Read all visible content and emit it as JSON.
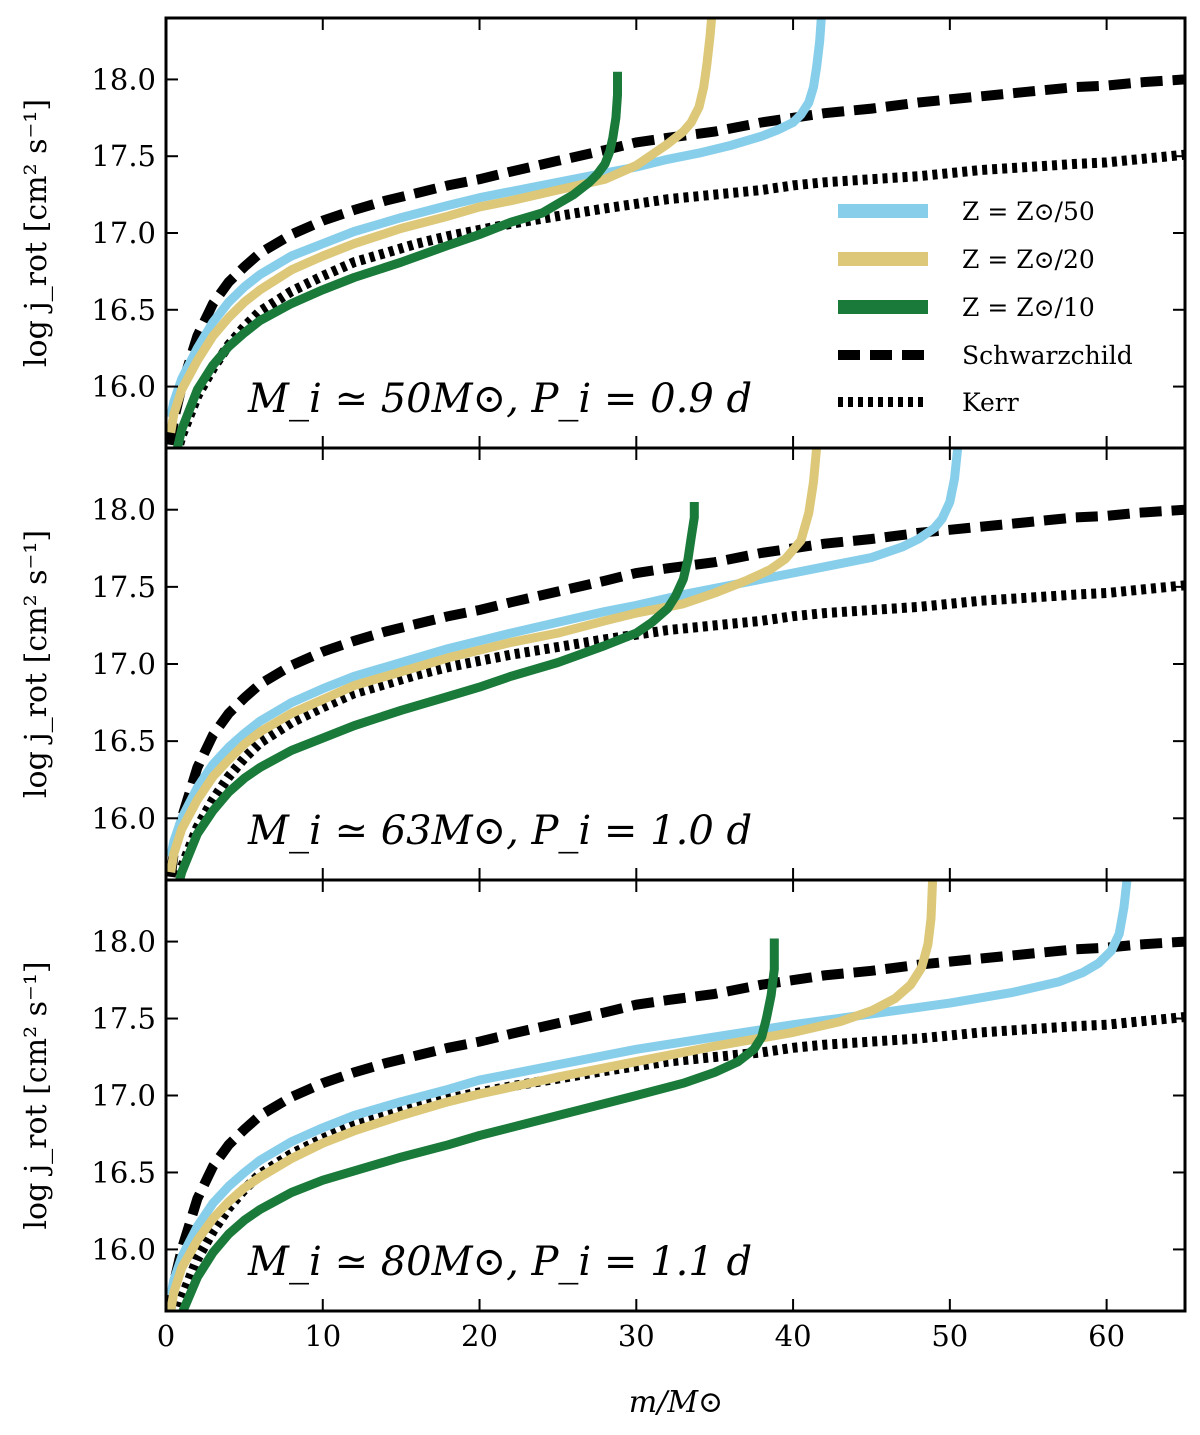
{
  "chart_data": {
    "type": "line",
    "xlabel": "m/M⊙",
    "ylabel": "log j_rot [cm² s⁻¹]",
    "xlim": [
      0,
      65
    ],
    "ylim": [
      15.6,
      18.4
    ],
    "xticks": [
      "0",
      "10",
      "20",
      "30",
      "40",
      "50",
      "60"
    ],
    "yticks": [
      "16.0",
      "16.5",
      "17.0",
      "17.5",
      "18.0"
    ],
    "colors": {
      "z50": "#87ceeb",
      "z20": "#dcc878",
      "z10": "#1a7a3a",
      "schwarzschild": "#000000",
      "kerr": "#000000"
    },
    "legend": {
      "position": "right",
      "entries": [
        {
          "key": "z50",
          "label": "Z = Z⊙/50",
          "style": "solid"
        },
        {
          "key": "z20",
          "label": "Z = Z⊙/20",
          "style": "solid"
        },
        {
          "key": "z10",
          "label": "Z = Z⊙/10",
          "style": "solid"
        },
        {
          "key": "schwarzschild",
          "label": "Schwarzchild",
          "style": "dashed"
        },
        {
          "key": "kerr",
          "label": "Kerr",
          "style": "dotted"
        }
      ]
    },
    "reference_curves": {
      "schwarzschild": {
        "x": [
          0.3,
          0.5,
          1,
          2,
          3,
          4,
          5,
          6,
          8,
          10,
          12,
          14,
          16,
          18,
          20,
          22,
          25,
          28,
          30,
          32,
          35,
          38,
          40,
          42,
          45,
          48,
          50,
          52,
          55,
          58,
          60,
          62,
          65
        ],
        "y": [
          15.62,
          15.78,
          16.0,
          16.33,
          16.54,
          16.68,
          16.78,
          16.87,
          16.99,
          17.08,
          17.15,
          17.21,
          17.26,
          17.31,
          17.35,
          17.4,
          17.47,
          17.54,
          17.59,
          17.62,
          17.66,
          17.72,
          17.75,
          17.78,
          17.81,
          17.85,
          17.87,
          17.89,
          17.92,
          17.95,
          17.96,
          17.98,
          18.0
        ]
      },
      "kerr": {
        "x": [
          0.5,
          1,
          2,
          3,
          4,
          5,
          6,
          8,
          10,
          12,
          14,
          16,
          18,
          20,
          22,
          25,
          28,
          30,
          32,
          35,
          38,
          40,
          42,
          45,
          48,
          50,
          52,
          55,
          58,
          60,
          62,
          65
        ],
        "y": [
          15.5,
          15.68,
          15.94,
          16.12,
          16.27,
          16.39,
          16.49,
          16.62,
          16.72,
          16.81,
          16.87,
          16.93,
          16.98,
          17.02,
          17.06,
          17.11,
          17.16,
          17.19,
          17.22,
          17.25,
          17.28,
          17.31,
          17.33,
          17.35,
          17.37,
          17.39,
          17.41,
          17.43,
          17.45,
          17.46,
          17.48,
          17.51
        ]
      }
    },
    "panels": [
      {
        "annotation": "M_i ≃ 50M⊙,  P_i = 0.9 d",
        "series": [
          {
            "name": "Z = Z⊙/50",
            "key": "z50",
            "x": [
              0.3,
              0.5,
              1,
              2,
              3,
              4,
              5,
              6,
              8,
              10,
              12,
              15,
              18,
              20,
              22,
              25,
              28,
              30,
              32,
              34,
              36,
              38,
              39,
              40,
              40.5,
              41,
              41.3,
              41.5,
              41.7,
              41.8
            ],
            "y": [
              15.8,
              15.9,
              16.05,
              16.25,
              16.42,
              16.55,
              16.65,
              16.73,
              16.85,
              16.93,
              17.01,
              17.1,
              17.18,
              17.23,
              17.27,
              17.33,
              17.39,
              17.43,
              17.48,
              17.52,
              17.57,
              17.63,
              17.67,
              17.72,
              17.77,
              17.85,
              17.95,
              18.08,
              18.25,
              18.4
            ]
          },
          {
            "name": "Z = Z⊙/20",
            "key": "z20",
            "x": [
              0.3,
              0.5,
              1,
              2,
              3,
              4,
              5,
              6,
              8,
              10,
              12,
              15,
              18,
              20,
              22,
              25,
              28,
              30,
              31,
              32,
              33,
              33.5,
              34,
              34.3,
              34.5,
              34.7,
              34.8
            ],
            "y": [
              15.7,
              15.82,
              15.98,
              16.17,
              16.33,
              16.45,
              16.55,
              16.63,
              16.76,
              16.85,
              16.93,
              17.03,
              17.11,
              17.17,
              17.21,
              17.28,
              17.35,
              17.44,
              17.51,
              17.58,
              17.66,
              17.72,
              17.82,
              17.95,
              18.1,
              18.28,
              18.4
            ]
          },
          {
            "name": "Z = Z⊙/10",
            "key": "z10",
            "x": [
              0.5,
              1,
              2,
              3,
              4,
              5,
              6,
              8,
              10,
              12,
              15,
              18,
              20,
              22,
              24,
              25,
              26,
              27,
              27.5,
              28,
              28.3,
              28.5,
              28.7,
              28.8,
              28.8
            ],
            "y": [
              15.5,
              15.72,
              15.98,
              16.14,
              16.26,
              16.35,
              16.43,
              16.54,
              16.63,
              16.71,
              16.81,
              16.92,
              16.99,
              17.07,
              17.13,
              17.19,
              17.25,
              17.33,
              17.38,
              17.45,
              17.53,
              17.62,
              17.75,
              17.9,
              18.05
            ]
          }
        ]
      },
      {
        "annotation": "M_i ≃ 63M⊙,  P_i = 1.0 d",
        "series": [
          {
            "name": "Z = Z⊙/50",
            "key": "z50",
            "x": [
              0.3,
              0.5,
              1,
              2,
              3,
              4,
              5,
              6,
              8,
              10,
              12,
              15,
              18,
              20,
              22,
              25,
              28,
              30,
              33,
              36,
              40,
              43,
              45,
              47,
              48,
              49,
              49.5,
              50,
              50.3,
              50.5
            ],
            "y": [
              15.75,
              15.85,
              16.0,
              16.2,
              16.35,
              16.46,
              16.55,
              16.63,
              16.75,
              16.84,
              16.92,
              17.01,
              17.1,
              17.15,
              17.2,
              17.27,
              17.34,
              17.38,
              17.45,
              17.51,
              17.59,
              17.65,
              17.69,
              17.76,
              17.81,
              17.88,
              17.94,
              18.05,
              18.2,
              18.4
            ]
          },
          {
            "name": "Z = Z⊙/20",
            "key": "z20",
            "x": [
              0.3,
              0.5,
              1,
              2,
              3,
              4,
              5,
              6,
              8,
              10,
              12,
              15,
              18,
              20,
              22,
              25,
              28,
              30,
              33,
              35,
              37,
              38.5,
              39.5,
              40.5,
              41,
              41.3,
              41.5
            ],
            "y": [
              15.65,
              15.77,
              15.93,
              16.12,
              16.27,
              16.38,
              16.48,
              16.56,
              16.68,
              16.77,
              16.86,
              16.95,
              17.04,
              17.09,
              17.14,
              17.2,
              17.28,
              17.33,
              17.39,
              17.46,
              17.54,
              17.61,
              17.68,
              17.8,
              17.98,
              18.18,
              18.4
            ]
          },
          {
            "name": "Z = Z⊙/10",
            "key": "z10",
            "x": [
              0.5,
              1,
              2,
              3,
              4,
              5,
              6,
              8,
              10,
              12,
              15,
              18,
              20,
              22,
              25,
              28,
              30,
              31,
              32,
              32.5,
              33,
              33.3,
              33.5,
              33.7,
              33.7
            ],
            "y": [
              15.45,
              15.65,
              15.9,
              16.05,
              16.17,
              16.26,
              16.33,
              16.44,
              16.52,
              16.6,
              16.7,
              16.79,
              16.85,
              16.92,
              17.01,
              17.12,
              17.2,
              17.27,
              17.36,
              17.44,
              17.55,
              17.68,
              17.82,
              17.95,
              18.05
            ]
          }
        ]
      },
      {
        "annotation": "M_i ≃ 80M⊙,  P_i = 1.1 d",
        "series": [
          {
            "name": "Z = Z⊙/50",
            "key": "z50",
            "x": [
              0.3,
              0.5,
              1,
              2,
              3,
              4,
              5,
              6,
              8,
              10,
              12,
              15,
              18,
              20,
              25,
              30,
              35,
              40,
              45,
              50,
              54,
              57,
              58.5,
              59.5,
              60.3,
              60.8,
              61.1,
              61.3
            ],
            "y": [
              15.7,
              15.8,
              15.95,
              16.15,
              16.3,
              16.41,
              16.5,
              16.58,
              16.7,
              16.79,
              16.87,
              16.96,
              17.04,
              17.1,
              17.2,
              17.3,
              17.38,
              17.46,
              17.53,
              17.6,
              17.67,
              17.74,
              17.8,
              17.86,
              17.94,
              18.05,
              18.22,
              18.4
            ]
          },
          {
            "name": "Z = Z⊙/20",
            "key": "z20",
            "x": [
              0.3,
              0.5,
              1,
              2,
              3,
              4,
              5,
              6,
              8,
              10,
              12,
              15,
              18,
              20,
              25,
              30,
              35,
              40,
              43,
              45,
              46.5,
              47.5,
              48.2,
              48.6,
              48.8,
              48.9
            ],
            "y": [
              15.6,
              15.72,
              15.88,
              16.06,
              16.2,
              16.31,
              16.4,
              16.47,
              16.59,
              16.69,
              16.77,
              16.87,
              16.96,
              17.01,
              17.12,
              17.22,
              17.32,
              17.41,
              17.48,
              17.55,
              17.63,
              17.72,
              17.83,
              17.98,
              18.15,
              18.4
            ]
          },
          {
            "name": "Z = Z⊙/10",
            "key": "z10",
            "x": [
              0.5,
              1,
              2,
              3,
              4,
              5,
              6,
              8,
              10,
              12,
              15,
              18,
              20,
              25,
              30,
              33,
              35,
              36.5,
              37.5,
              38,
              38.3,
              38.6,
              38.8,
              38.8
            ],
            "y": [
              15.4,
              15.58,
              15.82,
              15.98,
              16.1,
              16.19,
              16.26,
              16.37,
              16.45,
              16.51,
              16.6,
              16.68,
              16.74,
              16.87,
              17.0,
              17.08,
              17.15,
              17.22,
              17.3,
              17.38,
              17.5,
              17.65,
              17.82,
              18.02
            ]
          }
        ]
      }
    ]
  }
}
